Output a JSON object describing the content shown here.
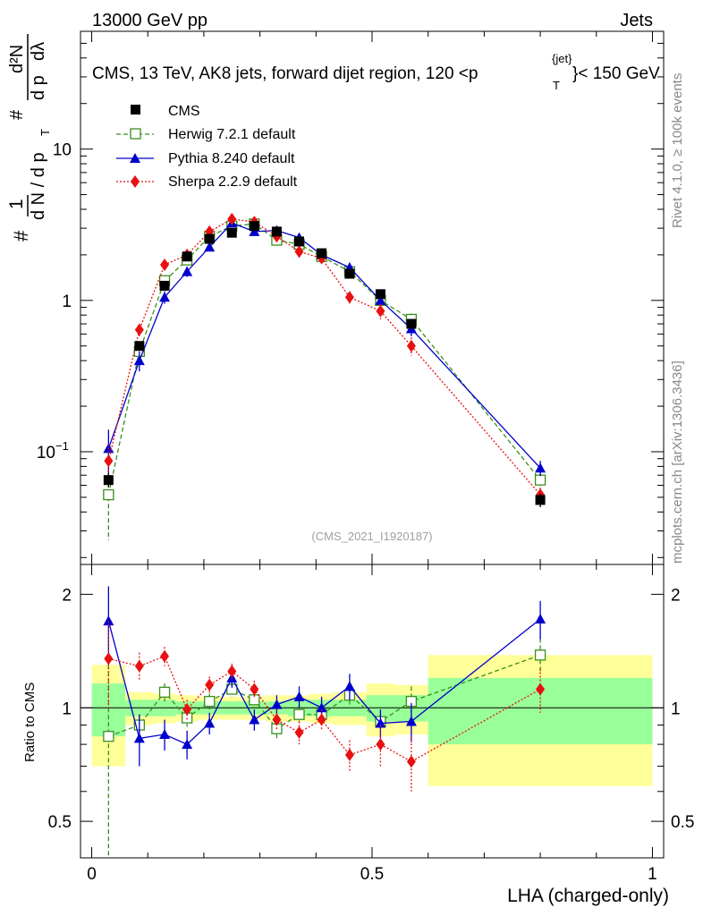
{
  "header": {
    "left": "13000 GeV pp",
    "right": "Jets"
  },
  "side": {
    "rivet": "Rivet 4.1.0, ≥ 100k events",
    "mcplots": "mcplots.cern.ch [arXiv:1306.3436]"
  },
  "chart_data": {
    "type": "line",
    "title": "CMS, 13 TeV, AK8 jets, forward dijet region, 120 <p",
    "title_sup": "{jet}",
    "title_sub": "T",
    "title_end": "}< 150 GeV",
    "analysis_id": "(CMS_2021_I1920187)",
    "xlabel": "LHA (charged-only)",
    "ylabel_ratio": "Ratio to CMS",
    "ylabel_main": {
      "lead": "#",
      "one": "1",
      "dN": "d N / d p",
      "t": "T",
      "hash": "#",
      "d2N": "d²N",
      "dp": "d p",
      "dl": "dλ"
    },
    "xlim": [
      -0.02,
      1.02
    ],
    "ylim_main": [
      0.018,
      60
    ],
    "ylim_ratio": [
      0.4,
      2.4
    ],
    "xticks": [
      "0",
      "0.5",
      "1"
    ],
    "yticks_main": [
      {
        "value": 0.1,
        "base": "10",
        "exp": "−1"
      },
      {
        "value": 1,
        "base": "1",
        "exp": ""
      },
      {
        "value": 10,
        "base": "10",
        "exp": ""
      }
    ],
    "yticks_ratio": [
      "0.5",
      "1",
      "2"
    ],
    "x": [
      0.03,
      0.085,
      0.13,
      0.17,
      0.21,
      0.25,
      0.29,
      0.33,
      0.37,
      0.41,
      0.46,
      0.515,
      0.57,
      0.8
    ],
    "bin_edges": [
      0,
      0.06,
      0.11,
      0.15,
      0.19,
      0.23,
      0.27,
      0.31,
      0.35,
      0.39,
      0.43,
      0.49,
      0.54,
      0.6,
      1.0
    ],
    "band_green_half": [
      0.16,
      0.05,
      0.05,
      0.04,
      0.04,
      0.04,
      0.04,
      0.04,
      0.05,
      0.05,
      0.05,
      0.08,
      0.08,
      0.2
    ],
    "band_yellow_half": [
      0.3,
      0.1,
      0.09,
      0.08,
      0.07,
      0.07,
      0.07,
      0.08,
      0.08,
      0.09,
      0.1,
      0.16,
      0.15,
      0.38
    ],
    "legend": [
      "CMS",
      "Herwig 7.2.1 default",
      "Pythia 8.240 default",
      "Sherpa 2.2.9 default"
    ],
    "series": [
      {
        "name": "CMS",
        "color": "#000000",
        "marker": "square-filled",
        "values": [
          0.065,
          0.5,
          1.25,
          1.95,
          2.55,
          2.8,
          3.1,
          2.85,
          2.45,
          2.05,
          1.5,
          1.1,
          0.7,
          0.048
        ],
        "err_lo": [
          0.007,
          0.03,
          0.06,
          0.08,
          0.1,
          0.1,
          0.12,
          0.12,
          0.11,
          0.1,
          0.08,
          0.06,
          0.05,
          0.005
        ],
        "err_hi": [
          0.007,
          0.03,
          0.06,
          0.08,
          0.1,
          0.1,
          0.12,
          0.12,
          0.11,
          0.1,
          0.08,
          0.06,
          0.05,
          0.005
        ],
        "ratio": [
          1,
          1,
          1,
          1,
          1,
          1,
          1,
          1,
          1,
          1,
          1,
          1,
          1,
          1
        ]
      },
      {
        "name": "Herwig 7.2.1 default",
        "color": "#3a8f1e",
        "marker": "square-open",
        "dash": "5,3",
        "values": [
          0.052,
          0.46,
          1.35,
          1.85,
          2.65,
          3.1,
          3.2,
          2.5,
          2.35,
          1.95,
          1.55,
          1.0,
          0.75,
          0.065
        ],
        "err_lo": [
          0.026,
          0.04,
          0.08,
          0.09,
          0.12,
          0.13,
          0.14,
          0.12,
          0.11,
          0.1,
          0.09,
          0.07,
          0.07,
          0.006
        ],
        "err_hi": [
          0.026,
          0.04,
          0.08,
          0.09,
          0.12,
          0.13,
          0.14,
          0.12,
          0.11,
          0.1,
          0.09,
          0.07,
          0.07,
          0.006
        ],
        "ratio": [
          0.84,
          0.9,
          1.1,
          0.94,
          1.04,
          1.12,
          1.05,
          0.88,
          0.96,
          0.96,
          1.08,
          0.92,
          1.04,
          1.38
        ],
        "ratio_err_lo": [
          0.46,
          0.06,
          0.06,
          0.05,
          0.05,
          0.05,
          0.05,
          0.05,
          0.05,
          0.05,
          0.06,
          0.06,
          0.1,
          0.15
        ],
        "ratio_err_hi": [
          0.46,
          0.06,
          0.06,
          0.05,
          0.05,
          0.05,
          0.05,
          0.05,
          0.05,
          0.05,
          0.06,
          0.06,
          0.1,
          0.15
        ]
      },
      {
        "name": "Pythia 8.240 default",
        "color": "#0000cc",
        "marker": "triangle",
        "values": [
          0.105,
          0.4,
          1.05,
          1.55,
          2.25,
          3.25,
          2.85,
          2.9,
          2.6,
          2.0,
          1.65,
          1.0,
          0.65,
          0.078
        ],
        "err_lo": [
          0.035,
          0.06,
          0.1,
          0.12,
          0.14,
          0.16,
          0.15,
          0.15,
          0.14,
          0.12,
          0.12,
          0.08,
          0.07,
          0.009
        ],
        "err_hi": [
          0.035,
          0.06,
          0.1,
          0.12,
          0.14,
          0.16,
          0.15,
          0.15,
          0.14,
          0.12,
          0.12,
          0.08,
          0.07,
          0.009
        ],
        "ratio": [
          1.7,
          0.83,
          0.85,
          0.8,
          0.91,
          1.2,
          0.93,
          1.02,
          1.07,
          1.0,
          1.14,
          0.91,
          0.92,
          1.72
        ],
        "ratio_err_lo": [
          0.4,
          0.13,
          0.08,
          0.07,
          0.06,
          0.07,
          0.06,
          0.06,
          0.07,
          0.07,
          0.09,
          0.08,
          0.11,
          0.2
        ],
        "ratio_err_hi": [
          0.4,
          0.13,
          0.08,
          0.07,
          0.06,
          0.07,
          0.06,
          0.06,
          0.07,
          0.07,
          0.09,
          0.08,
          0.11,
          0.2
        ]
      },
      {
        "name": "Sherpa 2.2.9 default",
        "color": "#e81010",
        "marker": "diamond",
        "dash": "2,2",
        "values": [
          0.087,
          0.64,
          1.72,
          2.0,
          2.85,
          3.45,
          3.3,
          2.65,
          2.1,
          1.9,
          1.05,
          0.85,
          0.5,
          0.052
        ],
        "err_lo": [
          0.025,
          0.06,
          0.12,
          0.12,
          0.14,
          0.16,
          0.16,
          0.14,
          0.12,
          0.11,
          0.1,
          0.1,
          0.07,
          0.006
        ],
        "err_hi": [
          0.025,
          0.06,
          0.12,
          0.12,
          0.14,
          0.16,
          0.16,
          0.14,
          0.12,
          0.11,
          0.1,
          0.1,
          0.07,
          0.006
        ],
        "ratio": [
          1.35,
          1.29,
          1.37,
          0.99,
          1.15,
          1.25,
          1.12,
          0.93,
          0.86,
          0.93,
          0.75,
          0.8,
          0.72,
          1.12
        ],
        "ratio_err_lo": [
          0.35,
          0.11,
          0.08,
          0.06,
          0.06,
          0.06,
          0.06,
          0.06,
          0.06,
          0.06,
          0.07,
          0.1,
          0.12,
          0.15
        ],
        "ratio_err_hi": [
          0.35,
          0.11,
          0.08,
          0.06,
          0.06,
          0.06,
          0.06,
          0.06,
          0.06,
          0.06,
          0.07,
          0.1,
          0.12,
          0.15
        ]
      }
    ]
  }
}
